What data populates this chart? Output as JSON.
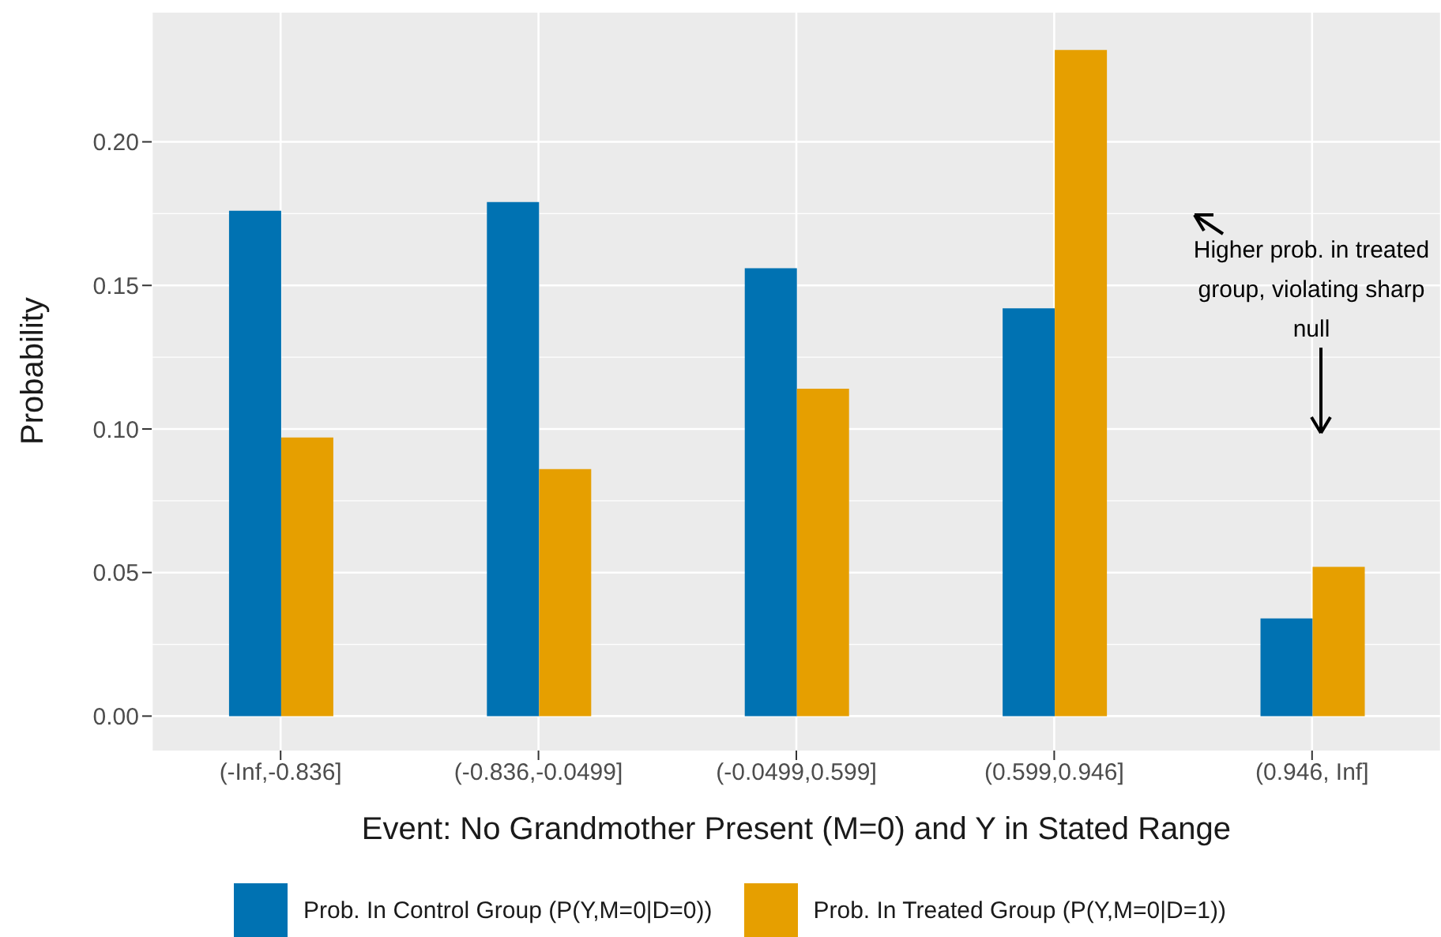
{
  "chart_data": {
    "type": "bar",
    "xlabel": "Event: No Grandmother Present (M=0) and Y in Stated Range",
    "ylabel": "Probability",
    "categories": [
      "(-Inf,-0.836]",
      "(-0.836,-0.0499]",
      "(-0.0499,0.599]",
      "(0.599,0.946]",
      "(0.946, Inf]"
    ],
    "series": [
      {
        "name": "Prob. In Control Group (P(Y,M=0|D=0))",
        "color": "#0072b2",
        "values": [
          0.176,
          0.179,
          0.156,
          0.142,
          0.034
        ]
      },
      {
        "name": "Prob. In Treated Group (P(Y,M=0|D=1))",
        "color": "#e69f00",
        "values": [
          0.097,
          0.086,
          0.114,
          0.232,
          0.052
        ]
      }
    ],
    "ylim": [
      -0.012,
      0.245
    ],
    "yticks": [
      {
        "value": 0,
        "label": "0.00"
      },
      {
        "value": 0.05,
        "label": "0.05"
      },
      {
        "value": 0.1,
        "label": "0.10"
      },
      {
        "value": 0.15,
        "label": "0.15"
      },
      {
        "value": 0.2,
        "label": "0.20"
      }
    ],
    "grid": true,
    "legend": "bottom",
    "annotations": [
      "Higher prob. in treated group, violating sharp null"
    ]
  }
}
